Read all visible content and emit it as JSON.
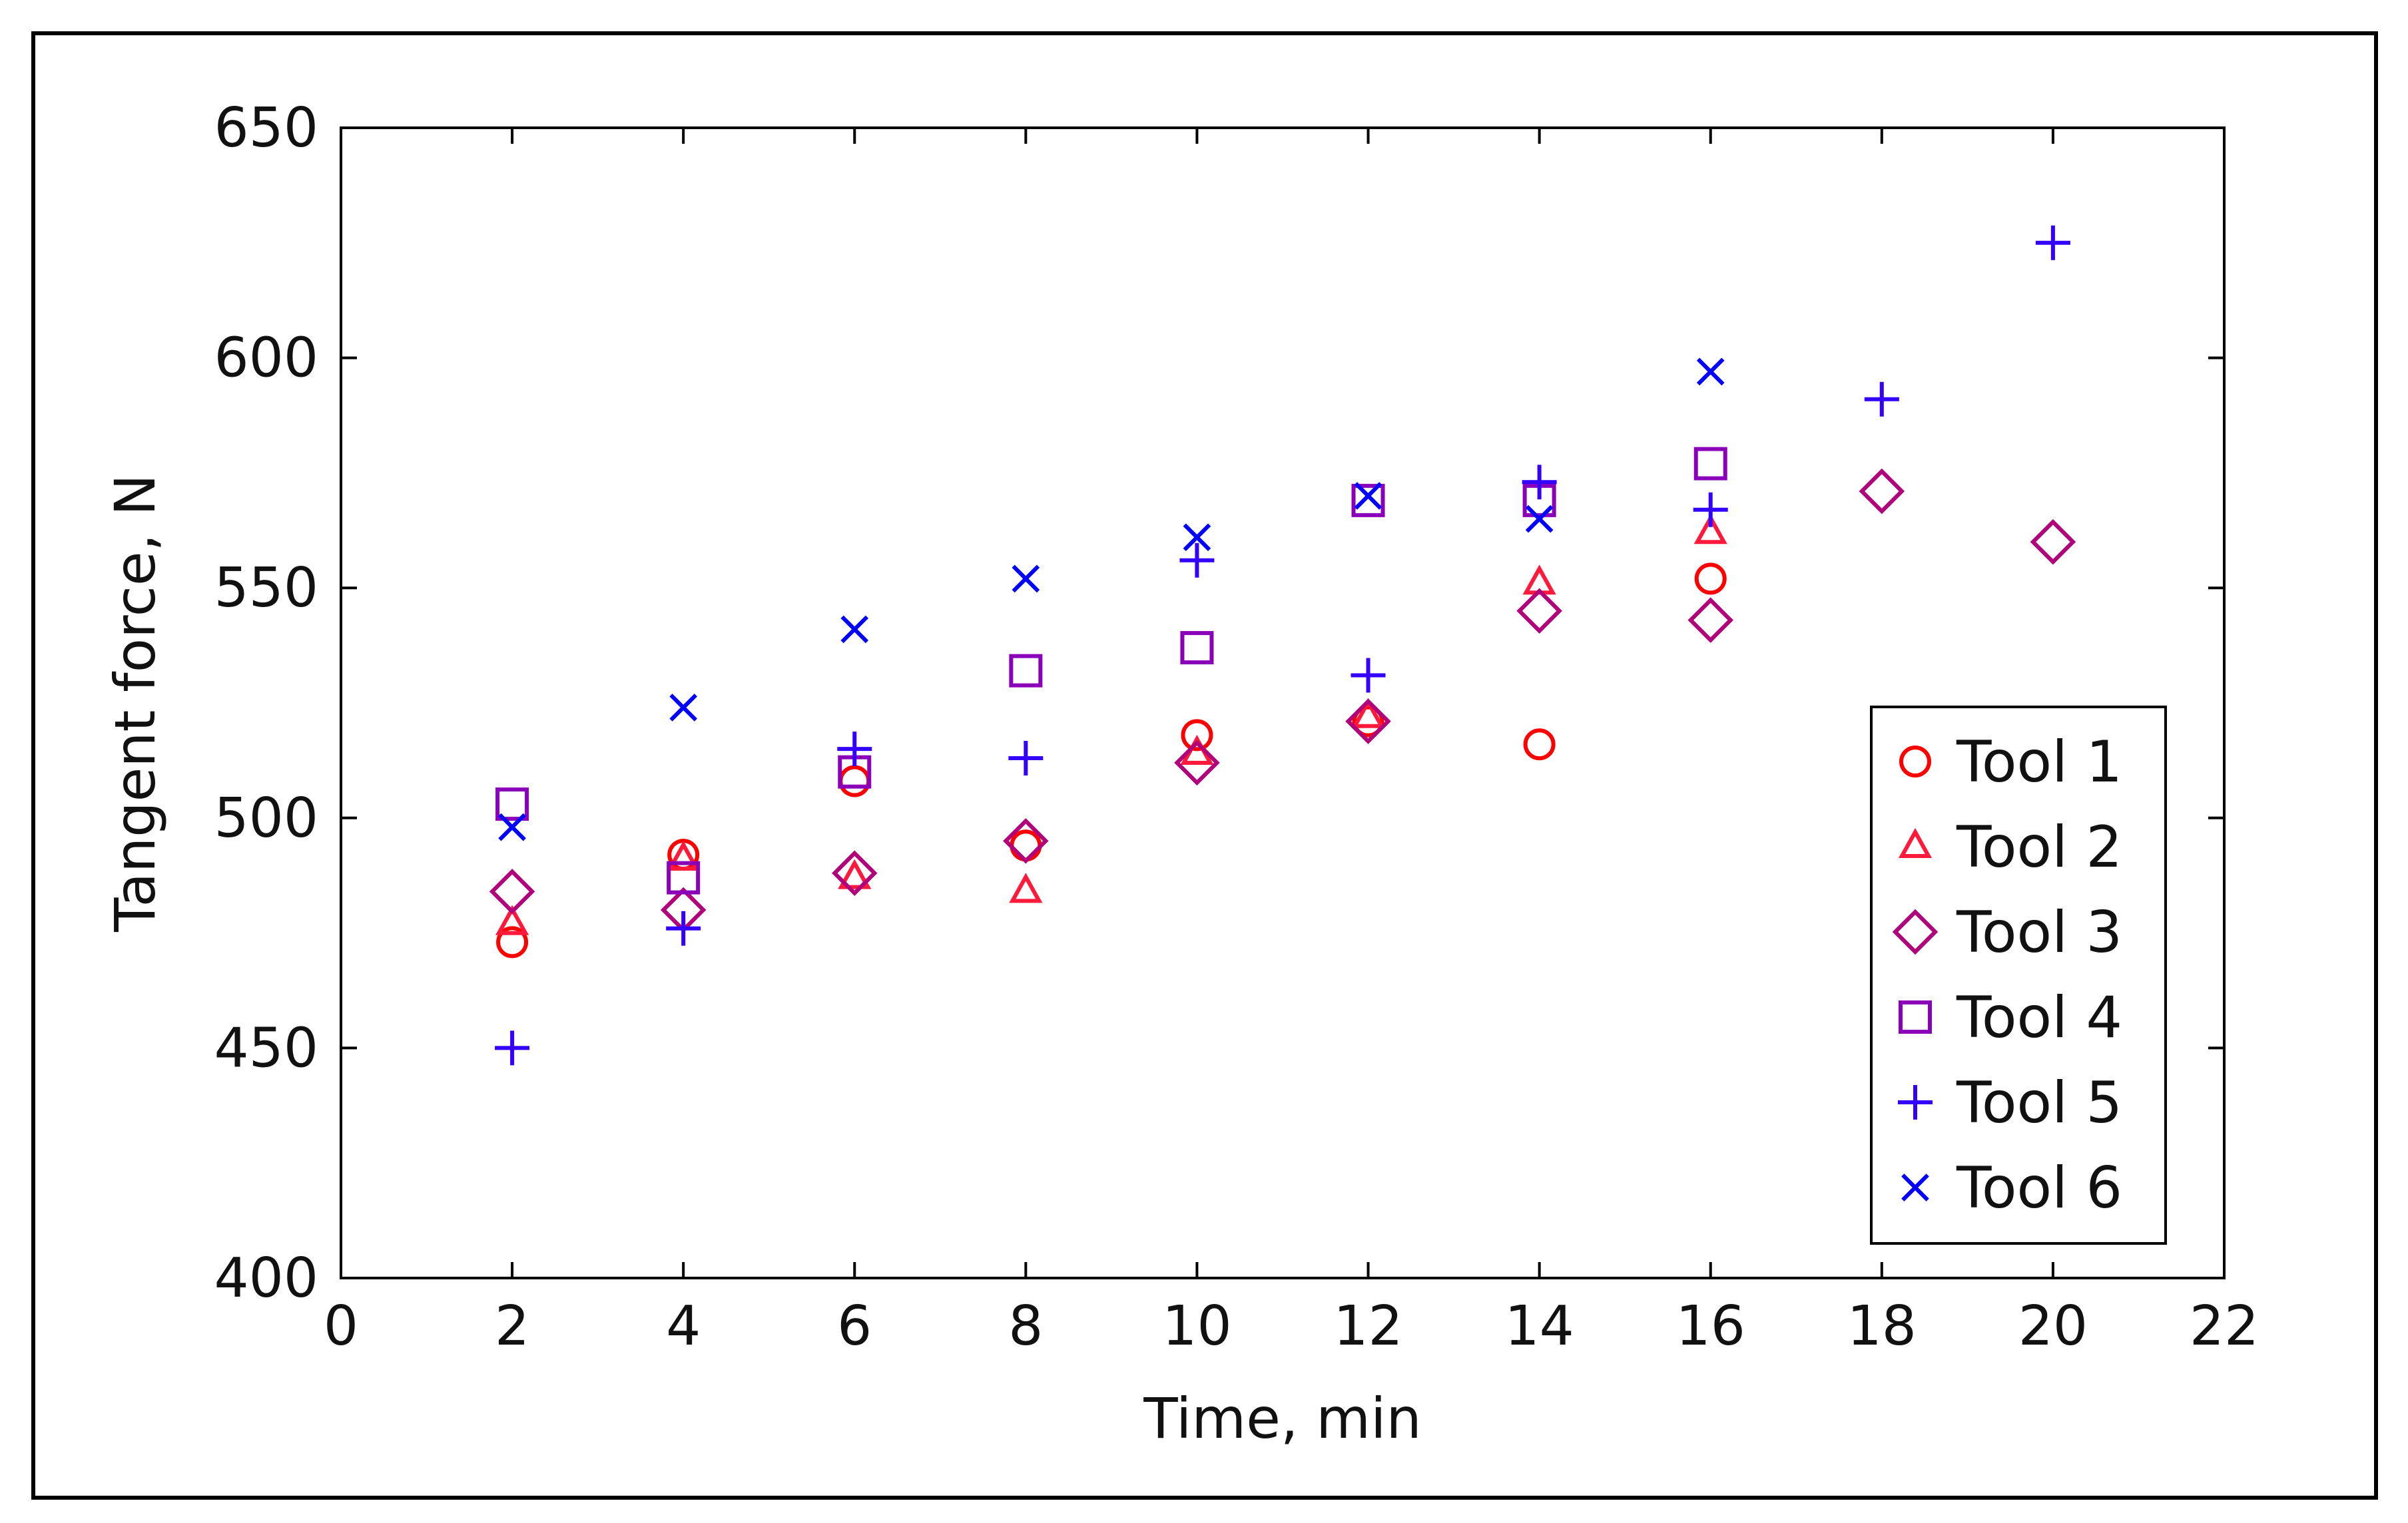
{
  "chart_data": {
    "type": "scatter",
    "title": "",
    "xlabel": "Time, min",
    "ylabel": "Tangent force, N",
    "xlim": [
      0,
      22
    ],
    "ylim": [
      400,
      650
    ],
    "xticks": [
      "0",
      "2",
      "4",
      "6",
      "8",
      "10",
      "12",
      "14",
      "16",
      "18",
      "20",
      "22"
    ],
    "yticks": [
      "400",
      "450",
      "500",
      "550",
      "600",
      "650"
    ],
    "grid": false,
    "legend_position": "bottom-right",
    "series": [
      {
        "name": "Tool 1",
        "marker": "circle",
        "color": "#ff0000",
        "x": [
          2,
          4,
          6,
          8,
          10,
          12,
          14,
          16
        ],
        "y": [
          473,
          492,
          508,
          494,
          518,
          521,
          516,
          552
        ]
      },
      {
        "name": "Tool 2",
        "marker": "triangle",
        "color": "#ff1a3c",
        "x": [
          2,
          4,
          6,
          8,
          10,
          12,
          14,
          16
        ],
        "y": [
          477,
          491,
          487,
          484,
          514,
          522,
          551,
          562
        ]
      },
      {
        "name": "Tool 3",
        "marker": "diamond",
        "color": "#b0007a",
        "x": [
          2,
          4,
          6,
          8,
          10,
          12,
          14,
          16,
          18,
          20
        ],
        "y": [
          484,
          480,
          488,
          495,
          512,
          521,
          545,
          543,
          571,
          560
        ]
      },
      {
        "name": "Tool 4",
        "marker": "square",
        "color": "#8a00b8",
        "x": [
          2,
          4,
          6,
          8,
          10,
          12,
          14,
          16
        ],
        "y": [
          503,
          487,
          510,
          532,
          537,
          569,
          569,
          577
        ]
      },
      {
        "name": "Tool 5",
        "marker": "plus",
        "color": "#3300ff",
        "x": [
          2,
          4,
          6,
          8,
          10,
          12,
          14,
          16,
          18,
          20
        ],
        "y": [
          450,
          476,
          515,
          513,
          556,
          531,
          573,
          567,
          591,
          625
        ]
      },
      {
        "name": "Tool 6",
        "marker": "cross",
        "color": "#0000ff",
        "x": [
          2,
          4,
          6,
          8,
          10,
          12,
          14,
          16
        ],
        "y": [
          498,
          524,
          541,
          552,
          561,
          570,
          565,
          597
        ]
      }
    ]
  }
}
